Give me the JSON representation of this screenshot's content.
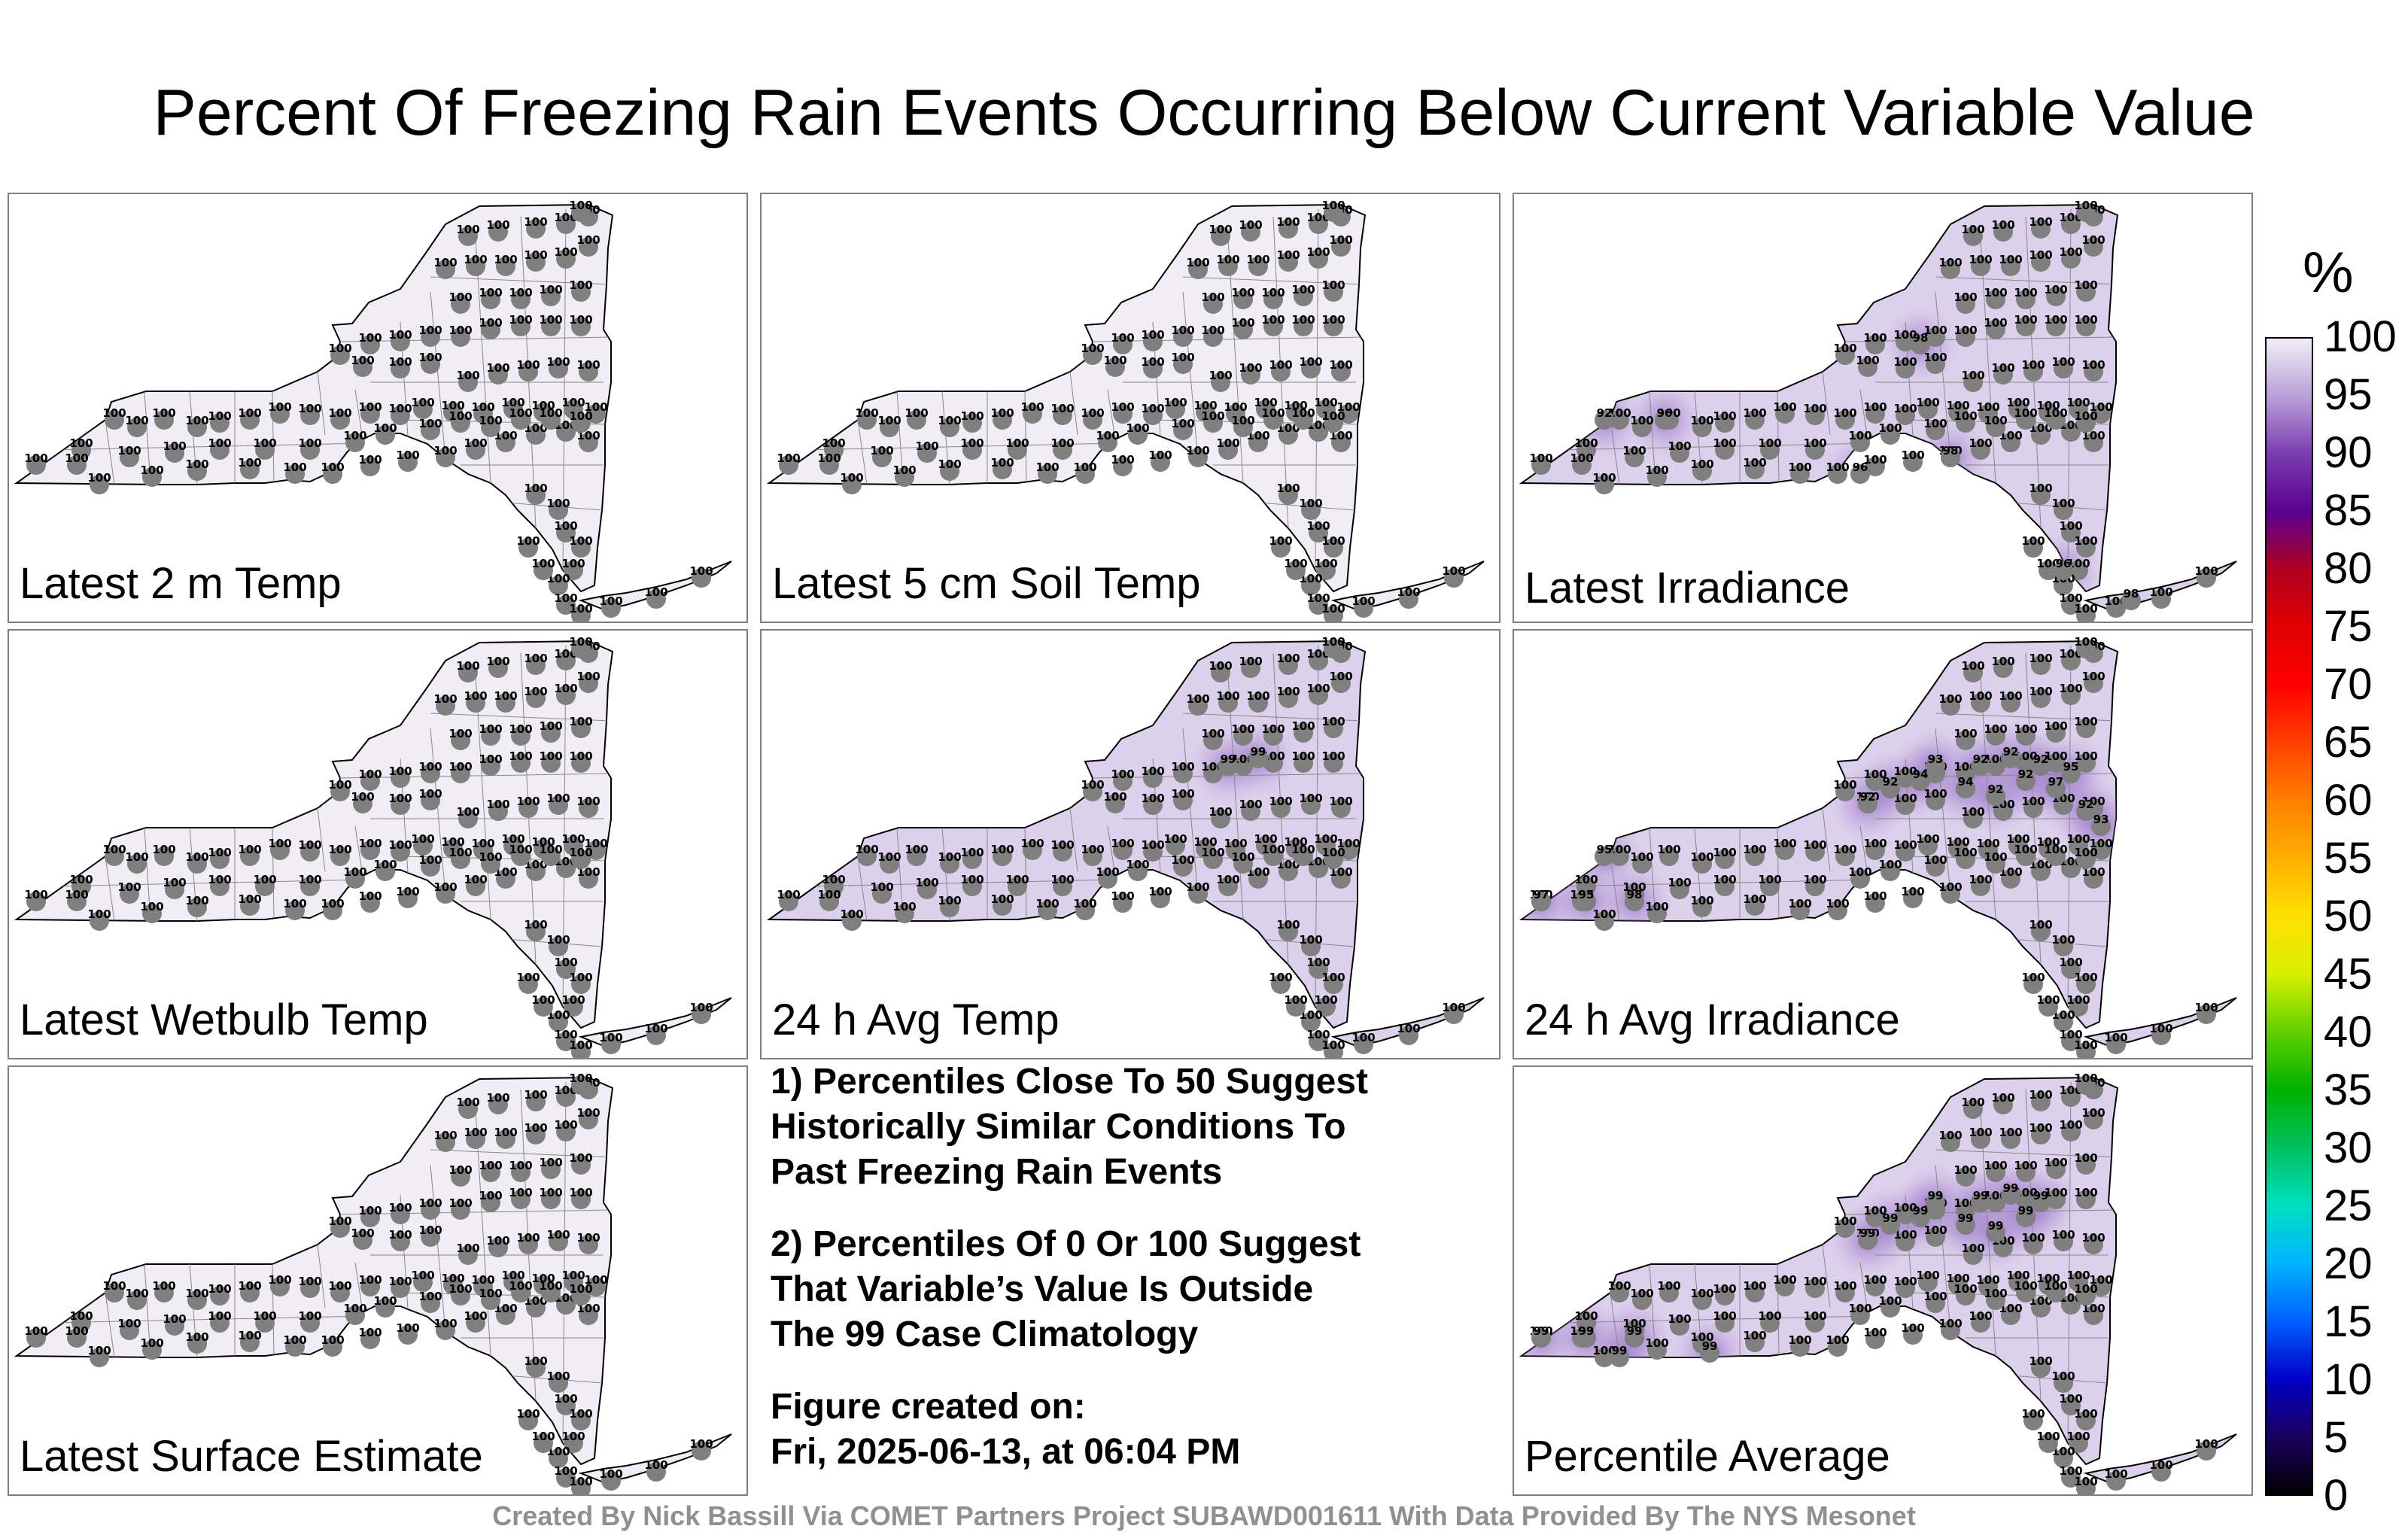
{
  "title": "Percent Of Freezing Rain Events Occurring Below Current Variable Value",
  "panels": [
    {
      "label": "Latest 2 m Temp",
      "special": []
    },
    {
      "label": "Latest 5 cm Soil Temp",
      "special": []
    },
    {
      "label": "Latest Irradiance",
      "special": [
        [
          "92",
          "n",
          0
        ],
        [
          "96",
          "n",
          1
        ],
        [
          "96",
          "s",
          4
        ],
        [
          "98",
          "s",
          6
        ],
        [
          "98",
          "ne",
          2
        ],
        [
          "96",
          "ls",
          0
        ],
        [
          "98",
          "li",
          2
        ]
      ]
    },
    {
      "label": "Latest Wetbulb Temp",
      "special": []
    },
    {
      "label": "24 h Avg Temp",
      "special": [
        [
          "99",
          "ne",
          5
        ],
        [
          "99",
          "ne",
          7
        ]
      ]
    },
    {
      "label": "24 h Avg Irradiance",
      "special": [
        [
          "95",
          "n",
          0
        ],
        [
          "92",
          "ne",
          0
        ],
        [
          "92",
          "ne",
          1
        ],
        [
          "94",
          "ne",
          2
        ],
        [
          "93",
          "ne",
          3
        ],
        [
          "94",
          "ne",
          4
        ],
        [
          "92",
          "ne",
          5
        ],
        [
          "92",
          "ne",
          6
        ],
        [
          "92",
          "ne",
          7
        ],
        [
          "92",
          "ne",
          8
        ],
        [
          "92",
          "ne",
          9
        ],
        [
          "97",
          "ne",
          10
        ],
        [
          "95",
          "ne",
          11
        ],
        [
          "92",
          "ne",
          12
        ],
        [
          "93",
          "ne",
          13
        ],
        [
          "97",
          "w",
          0
        ],
        [
          "95",
          "w",
          1
        ],
        [
          "98",
          "w",
          2
        ]
      ]
    },
    {
      "label": "Latest Surface Estimate",
      "special": []
    },
    null,
    {
      "label": "Percentile Average",
      "special": [
        [
          "99",
          "ne",
          0
        ],
        [
          "99",
          "ne",
          1
        ],
        [
          "99",
          "ne",
          2
        ],
        [
          "99",
          "ne",
          3
        ],
        [
          "99",
          "ne",
          4
        ],
        [
          "99",
          "ne",
          5
        ],
        [
          "99",
          "ne",
          6
        ],
        [
          "99",
          "ne",
          7
        ],
        [
          "99",
          "ne",
          8
        ],
        [
          "99",
          "ne",
          9
        ],
        [
          "99",
          "w",
          0
        ],
        [
          "99",
          "w",
          1
        ],
        [
          "99",
          "w",
          2
        ],
        [
          "99",
          "s",
          0
        ],
        [
          "99",
          "s",
          1
        ]
      ]
    }
  ],
  "default_value": "100",
  "notes": {
    "note1": [
      "1) Percentiles Close To 50 Suggest",
      "Historically Similar Conditions To",
      "Past Freezing Rain Events"
    ],
    "note2": [
      "2) Percentiles Of 0 Or 100 Suggest",
      "That Variable’s Value Is Outside",
      "The 99 Case Climatology"
    ],
    "created_label": "Figure created on:",
    "created_date": "Fri, 2025-06-13, at 06:04 PM"
  },
  "colorbar": {
    "unit": "%",
    "ticks": [
      "0",
      "5",
      "10",
      "15",
      "20",
      "25",
      "30",
      "35",
      "40",
      "45",
      "50",
      "55",
      "60",
      "65",
      "70",
      "75",
      "80",
      "85",
      "90",
      "95",
      "100"
    ],
    "colors": [
      "#000000",
      "#1b0060",
      "#0000c8",
      "#0060ff",
      "#00b4ff",
      "#00e0c0",
      "#00c060",
      "#00b000",
      "#60d000",
      "#d8f000",
      "#ffe000",
      "#ffb000",
      "#ff8000",
      "#ff4000",
      "#ff0000",
      "#e00000",
      "#b00020",
      "#5a0090",
      "#7a3cb0",
      "#b9a0d8",
      "#f2eef8"
    ]
  },
  "footer": "Created By Nick Bassill Via COMET Partners Project SUBAWD001611 With Data Provided By The NYS Mesonet"
}
